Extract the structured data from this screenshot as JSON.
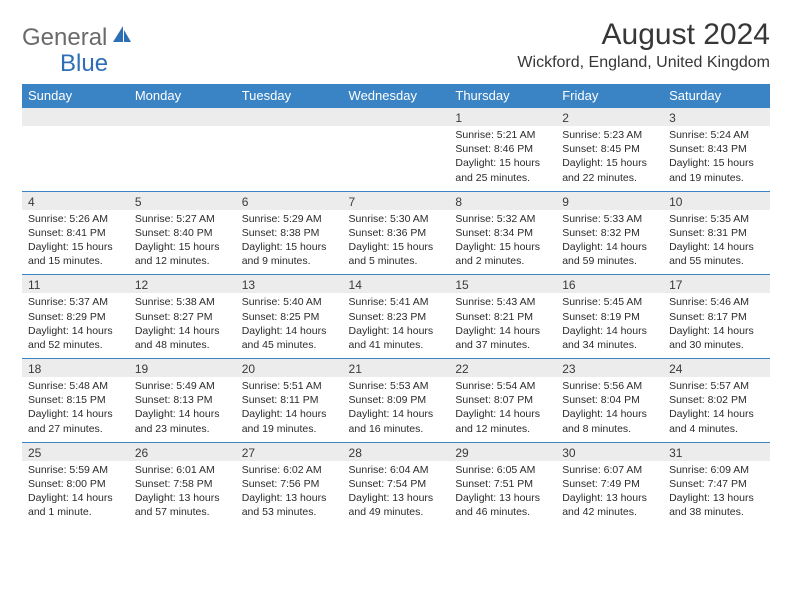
{
  "logo": {
    "general": "General",
    "blue": "Blue"
  },
  "title": "August 2024",
  "location": "Wickford, England, United Kingdom",
  "colors": {
    "header_bg": "#3a83c4",
    "header_text": "#ffffff",
    "num_row_bg": "#ececec",
    "row_border": "#3a83c4",
    "title_color": "#373737",
    "logo_gray": "#6a6a6a",
    "logo_blue": "#2d6fb5"
  },
  "weekdays": [
    "Sunday",
    "Monday",
    "Tuesday",
    "Wednesday",
    "Thursday",
    "Friday",
    "Saturday"
  ],
  "weeks": [
    [
      null,
      null,
      null,
      null,
      {
        "n": "1",
        "sr": "Sunrise: 5:21 AM",
        "ss": "Sunset: 8:46 PM",
        "dl": "Daylight: 15 hours and 25 minutes."
      },
      {
        "n": "2",
        "sr": "Sunrise: 5:23 AM",
        "ss": "Sunset: 8:45 PM",
        "dl": "Daylight: 15 hours and 22 minutes."
      },
      {
        "n": "3",
        "sr": "Sunrise: 5:24 AM",
        "ss": "Sunset: 8:43 PM",
        "dl": "Daylight: 15 hours and 19 minutes."
      }
    ],
    [
      {
        "n": "4",
        "sr": "Sunrise: 5:26 AM",
        "ss": "Sunset: 8:41 PM",
        "dl": "Daylight: 15 hours and 15 minutes."
      },
      {
        "n": "5",
        "sr": "Sunrise: 5:27 AM",
        "ss": "Sunset: 8:40 PM",
        "dl": "Daylight: 15 hours and 12 minutes."
      },
      {
        "n": "6",
        "sr": "Sunrise: 5:29 AM",
        "ss": "Sunset: 8:38 PM",
        "dl": "Daylight: 15 hours and 9 minutes."
      },
      {
        "n": "7",
        "sr": "Sunrise: 5:30 AM",
        "ss": "Sunset: 8:36 PM",
        "dl": "Daylight: 15 hours and 5 minutes."
      },
      {
        "n": "8",
        "sr": "Sunrise: 5:32 AM",
        "ss": "Sunset: 8:34 PM",
        "dl": "Daylight: 15 hours and 2 minutes."
      },
      {
        "n": "9",
        "sr": "Sunrise: 5:33 AM",
        "ss": "Sunset: 8:32 PM",
        "dl": "Daylight: 14 hours and 59 minutes."
      },
      {
        "n": "10",
        "sr": "Sunrise: 5:35 AM",
        "ss": "Sunset: 8:31 PM",
        "dl": "Daylight: 14 hours and 55 minutes."
      }
    ],
    [
      {
        "n": "11",
        "sr": "Sunrise: 5:37 AM",
        "ss": "Sunset: 8:29 PM",
        "dl": "Daylight: 14 hours and 52 minutes."
      },
      {
        "n": "12",
        "sr": "Sunrise: 5:38 AM",
        "ss": "Sunset: 8:27 PM",
        "dl": "Daylight: 14 hours and 48 minutes."
      },
      {
        "n": "13",
        "sr": "Sunrise: 5:40 AM",
        "ss": "Sunset: 8:25 PM",
        "dl": "Daylight: 14 hours and 45 minutes."
      },
      {
        "n": "14",
        "sr": "Sunrise: 5:41 AM",
        "ss": "Sunset: 8:23 PM",
        "dl": "Daylight: 14 hours and 41 minutes."
      },
      {
        "n": "15",
        "sr": "Sunrise: 5:43 AM",
        "ss": "Sunset: 8:21 PM",
        "dl": "Daylight: 14 hours and 37 minutes."
      },
      {
        "n": "16",
        "sr": "Sunrise: 5:45 AM",
        "ss": "Sunset: 8:19 PM",
        "dl": "Daylight: 14 hours and 34 minutes."
      },
      {
        "n": "17",
        "sr": "Sunrise: 5:46 AM",
        "ss": "Sunset: 8:17 PM",
        "dl": "Daylight: 14 hours and 30 minutes."
      }
    ],
    [
      {
        "n": "18",
        "sr": "Sunrise: 5:48 AM",
        "ss": "Sunset: 8:15 PM",
        "dl": "Daylight: 14 hours and 27 minutes."
      },
      {
        "n": "19",
        "sr": "Sunrise: 5:49 AM",
        "ss": "Sunset: 8:13 PM",
        "dl": "Daylight: 14 hours and 23 minutes."
      },
      {
        "n": "20",
        "sr": "Sunrise: 5:51 AM",
        "ss": "Sunset: 8:11 PM",
        "dl": "Daylight: 14 hours and 19 minutes."
      },
      {
        "n": "21",
        "sr": "Sunrise: 5:53 AM",
        "ss": "Sunset: 8:09 PM",
        "dl": "Daylight: 14 hours and 16 minutes."
      },
      {
        "n": "22",
        "sr": "Sunrise: 5:54 AM",
        "ss": "Sunset: 8:07 PM",
        "dl": "Daylight: 14 hours and 12 minutes."
      },
      {
        "n": "23",
        "sr": "Sunrise: 5:56 AM",
        "ss": "Sunset: 8:04 PM",
        "dl": "Daylight: 14 hours and 8 minutes."
      },
      {
        "n": "24",
        "sr": "Sunrise: 5:57 AM",
        "ss": "Sunset: 8:02 PM",
        "dl": "Daylight: 14 hours and 4 minutes."
      }
    ],
    [
      {
        "n": "25",
        "sr": "Sunrise: 5:59 AM",
        "ss": "Sunset: 8:00 PM",
        "dl": "Daylight: 14 hours and 1 minute."
      },
      {
        "n": "26",
        "sr": "Sunrise: 6:01 AM",
        "ss": "Sunset: 7:58 PM",
        "dl": "Daylight: 13 hours and 57 minutes."
      },
      {
        "n": "27",
        "sr": "Sunrise: 6:02 AM",
        "ss": "Sunset: 7:56 PM",
        "dl": "Daylight: 13 hours and 53 minutes."
      },
      {
        "n": "28",
        "sr": "Sunrise: 6:04 AM",
        "ss": "Sunset: 7:54 PM",
        "dl": "Daylight: 13 hours and 49 minutes."
      },
      {
        "n": "29",
        "sr": "Sunrise: 6:05 AM",
        "ss": "Sunset: 7:51 PM",
        "dl": "Daylight: 13 hours and 46 minutes."
      },
      {
        "n": "30",
        "sr": "Sunrise: 6:07 AM",
        "ss": "Sunset: 7:49 PM",
        "dl": "Daylight: 13 hours and 42 minutes."
      },
      {
        "n": "31",
        "sr": "Sunrise: 6:09 AM",
        "ss": "Sunset: 7:47 PM",
        "dl": "Daylight: 13 hours and 38 minutes."
      }
    ]
  ]
}
